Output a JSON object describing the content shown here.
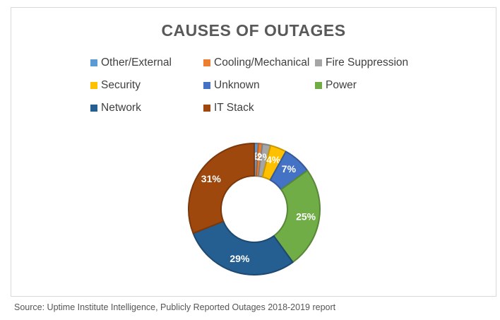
{
  "chart_data": {
    "type": "pie",
    "donut": true,
    "title": "CAUSES OF OUTAGES",
    "legend_position": "top",
    "slices": [
      {
        "label": "Other/External",
        "value": 1,
        "display": "1%",
        "color": "#5b9bd5"
      },
      {
        "label": "Cooling/Mechanical",
        "value": 1,
        "display": "1%",
        "color": "#ed7d31"
      },
      {
        "label": "Fire Suppression",
        "value": 2,
        "display": "2%",
        "color": "#a5a5a5"
      },
      {
        "label": "Security",
        "value": 4,
        "display": "4%",
        "color": "#ffc000"
      },
      {
        "label": "Unknown",
        "value": 7,
        "display": "7%",
        "color": "#4472c4"
      },
      {
        "label": "Power",
        "value": 25,
        "display": "25%",
        "color": "#70ad47"
      },
      {
        "label": "Network",
        "value": 29,
        "display": "29%",
        "color": "#255e91"
      },
      {
        "label": "IT Stack",
        "value": 31,
        "display": "31%",
        "color": "#9e480e"
      }
    ]
  },
  "source": "Source: Uptime Institute Intelligence, Publicly Reported Outages 2018-2019 report"
}
